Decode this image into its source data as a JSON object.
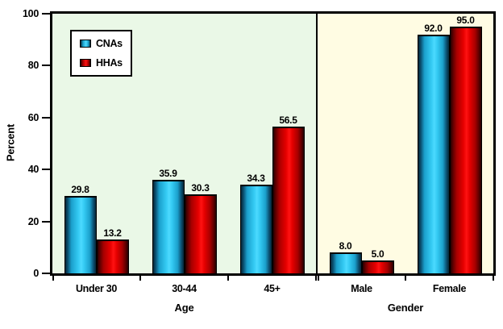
{
  "chart_data": {
    "type": "bar",
    "title": "",
    "ylabel": "Percent",
    "ylim": [
      0,
      100
    ],
    "yticks": [
      0,
      20,
      40,
      60,
      80,
      100
    ],
    "grid": "horizontal",
    "legend_position": "top-left",
    "legend": [
      "CNAs",
      "HHAs"
    ],
    "value_labels": true,
    "groups": [
      {
        "label": "Age",
        "categories": [
          "Under 30",
          "30-44",
          "45+"
        ],
        "background": "#eaf8e7",
        "series": [
          {
            "name": "CNAs",
            "values": [
              29.8,
              35.9,
              34.3
            ]
          },
          {
            "name": "HHAs",
            "values": [
              13.2,
              30.3,
              56.5
            ]
          }
        ]
      },
      {
        "label": "Gender",
        "categories": [
          "Male",
          "Female"
        ],
        "background": "#fffce3",
        "series": [
          {
            "name": "CNAs",
            "values": [
              8.0,
              92.0
            ]
          },
          {
            "name": "HHAs",
            "values": [
              5.0,
              95.0
            ]
          }
        ]
      }
    ],
    "colors": {
      "cnas_bar": "#2fc4ec",
      "hhas_bar": "#e60000",
      "gridline": "#aeae9f",
      "border": "#000000",
      "age_background": "#eaf8e7",
      "gender_background": "#fffce3"
    }
  }
}
